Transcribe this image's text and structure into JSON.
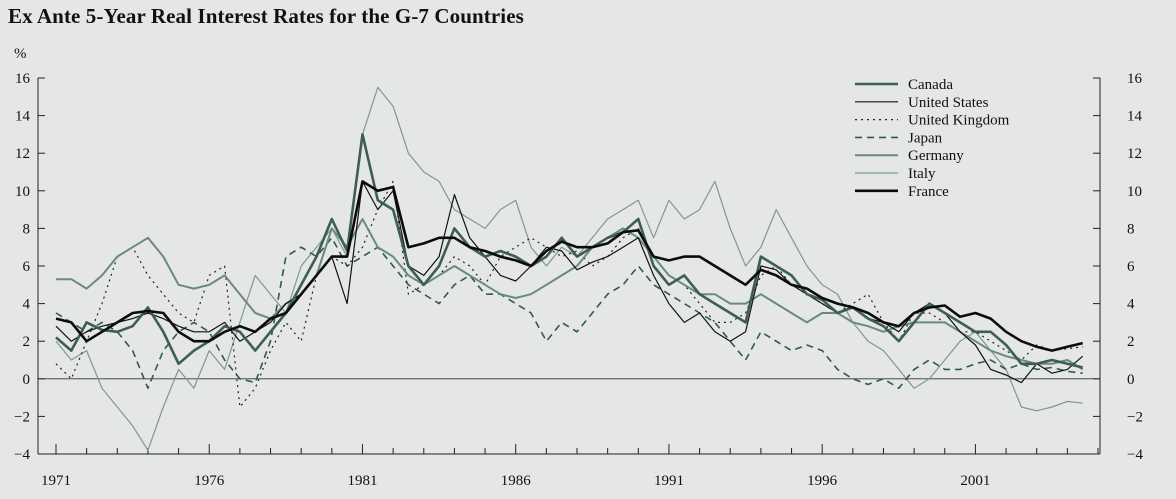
{
  "chart_data": {
    "type": "line",
    "title": "Ex Ante 5-Year Real Interest Rates for the G-7 Countries",
    "ylabel": "%",
    "xlabel": "",
    "ylim": [
      -4,
      16
    ],
    "xlim": [
      1971,
      2005
    ],
    "y_ticks": [
      -4,
      -2,
      0,
      2,
      4,
      6,
      8,
      10,
      12,
      14,
      16
    ],
    "y_tick_labels": [
      "−4",
      "−2",
      "0",
      "2",
      "4",
      "6",
      "8",
      "10",
      "12",
      "14",
      "16"
    ],
    "x_ticks": [
      1971,
      1976,
      1981,
      1986,
      1991,
      1996,
      2001
    ],
    "x_tick_labels": [
      "1971",
      "1976",
      "1981",
      "1986",
      "1991",
      "1996",
      "2001"
    ],
    "legend_position": "top-right",
    "series": [
      {
        "name": "Canada",
        "color": "#3e5e54",
        "style": "thick",
        "x": [
          1971.0,
          1971.5,
          1972.0,
          1972.5,
          1973.0,
          1973.5,
          1974.0,
          1974.5,
          1975.0,
          1975.5,
          1976.0,
          1976.5,
          1977.0,
          1977.5,
          1978.0,
          1978.5,
          1979.0,
          1979.5,
          1980.0,
          1980.5,
          1981.0,
          1981.5,
          1982.0,
          1982.5,
          1983.0,
          1983.5,
          1984.0,
          1984.5,
          1985.0,
          1985.5,
          1986.0,
          1986.5,
          1987.0,
          1987.5,
          1988.0,
          1988.5,
          1989.0,
          1989.5,
          1990.0,
          1990.5,
          1991.0,
          1991.5,
          1992.0,
          1992.5,
          1993.0,
          1993.5,
          1994.0,
          1994.5,
          1995.0,
          1995.5,
          1996.0,
          1996.5,
          1997.0,
          1997.5,
          1998.0,
          1998.5,
          1999.0,
          1999.5,
          2000.0,
          2000.5,
          2001.0,
          2001.5,
          2002.0,
          2002.5,
          2003.0,
          2003.5,
          2004.0,
          2004.5
        ],
        "values": [
          2.2,
          1.5,
          3.0,
          2.6,
          2.5,
          2.8,
          3.8,
          2.5,
          0.8,
          1.5,
          2.0,
          2.8,
          2.5,
          1.5,
          2.5,
          3.5,
          5.0,
          6.5,
          8.5,
          6.8,
          13.0,
          9.5,
          9.0,
          6.0,
          5.0,
          6.0,
          8.0,
          7.0,
          6.5,
          6.8,
          6.5,
          6.0,
          6.5,
          7.5,
          6.5,
          7.0,
          7.5,
          7.8,
          8.5,
          6.0,
          5.0,
          5.5,
          4.5,
          4.0,
          3.5,
          3.0,
          6.5,
          6.0,
          5.5,
          4.5,
          4.2,
          3.5,
          3.8,
          3.2,
          2.8,
          2.0,
          3.0,
          4.0,
          3.5,
          3.0,
          2.5,
          2.5,
          1.8,
          0.8,
          0.8,
          1.0,
          0.8,
          0.6
        ]
      },
      {
        "name": "United States",
        "color": "#111111",
        "style": "thin",
        "x": [
          1971.0,
          1971.5,
          1972.0,
          1972.5,
          1973.0,
          1973.5,
          1974.0,
          1974.5,
          1975.0,
          1975.5,
          1976.0,
          1976.5,
          1977.0,
          1977.5,
          1978.0,
          1978.5,
          1979.0,
          1979.5,
          1980.0,
          1980.5,
          1981.0,
          1981.5,
          1982.0,
          1982.5,
          1983.0,
          1983.5,
          1984.0,
          1984.5,
          1985.0,
          1985.5,
          1986.0,
          1986.5,
          1987.0,
          1987.5,
          1988.0,
          1988.5,
          1989.0,
          1989.5,
          1990.0,
          1990.5,
          1991.0,
          1991.5,
          1992.0,
          1992.5,
          1993.0,
          1993.5,
          1994.0,
          1994.5,
          1995.0,
          1995.5,
          1996.0,
          1996.5,
          1997.0,
          1997.5,
          1998.0,
          1998.5,
          1999.0,
          1999.5,
          2000.0,
          2000.5,
          2001.0,
          2001.5,
          2002.0,
          2002.5,
          2003.0,
          2003.5,
          2004.0,
          2004.5
        ],
        "values": [
          2.8,
          2.0,
          2.5,
          2.8,
          3.0,
          3.2,
          3.5,
          3.2,
          2.8,
          2.5,
          2.5,
          3.0,
          2.0,
          2.5,
          3.0,
          4.0,
          4.5,
          5.5,
          6.5,
          4.0,
          10.5,
          9.0,
          10.0,
          6.0,
          5.5,
          6.5,
          9.8,
          7.5,
          6.5,
          5.5,
          5.2,
          6.0,
          7.0,
          6.8,
          5.8,
          6.2,
          6.5,
          7.0,
          7.5,
          5.5,
          4.0,
          3.0,
          3.5,
          2.5,
          2.0,
          2.5,
          6.0,
          5.8,
          5.0,
          4.5,
          4.0,
          3.5,
          3.8,
          3.2,
          3.0,
          2.5,
          3.5,
          4.0,
          3.5,
          2.5,
          1.8,
          0.5,
          0.2,
          -0.2,
          0.8,
          0.3,
          0.5,
          1.2
        ]
      },
      {
        "name": "United Kingdom",
        "color": "#222222",
        "style": "dotted",
        "x": [
          1971.0,
          1971.5,
          1972.0,
          1972.5,
          1973.0,
          1973.5,
          1974.0,
          1974.5,
          1975.0,
          1975.5,
          1976.0,
          1976.5,
          1977.0,
          1977.5,
          1978.0,
          1978.5,
          1979.0,
          1979.5,
          1980.0,
          1980.5,
          1981.0,
          1981.5,
          1982.0,
          1982.5,
          1983.0,
          1983.5,
          1984.0,
          1984.5,
          1985.0,
          1985.5,
          1986.0,
          1986.5,
          1987.0,
          1987.5,
          1988.0,
          1988.5,
          1989.0,
          1989.5,
          1990.0,
          1990.5,
          1991.0,
          1991.5,
          1992.0,
          1992.5,
          1993.0,
          1993.5,
          1994.0,
          1994.5,
          1995.0,
          1995.5,
          1996.0,
          1996.5,
          1997.0,
          1997.5,
          1998.0,
          1998.5,
          1999.0,
          1999.5,
          2000.0,
          2000.5,
          2001.0,
          2001.5,
          2002.0,
          2002.5,
          2003.0,
          2003.5,
          2004.0,
          2004.5
        ],
        "values": [
          0.8,
          0.0,
          2.0,
          4.0,
          6.5,
          7.0,
          5.5,
          4.5,
          3.5,
          3.0,
          5.5,
          6.0,
          -1.5,
          -0.5,
          1.5,
          3.0,
          2.0,
          5.5,
          6.5,
          6.0,
          7.0,
          9.0,
          10.5,
          4.5,
          5.0,
          5.5,
          6.5,
          6.0,
          5.0,
          6.5,
          7.0,
          7.5,
          7.0,
          6.5,
          6.8,
          6.0,
          6.5,
          7.5,
          8.0,
          6.5,
          5.5,
          5.0,
          4.0,
          3.0,
          3.0,
          3.5,
          5.5,
          6.0,
          5.0,
          4.5,
          4.0,
          3.5,
          4.0,
          4.5,
          3.0,
          2.0,
          3.5,
          3.5,
          3.0,
          2.5,
          2.5,
          2.0,
          1.5,
          1.0,
          1.8,
          1.5,
          1.6,
          1.7
        ]
      },
      {
        "name": "Japan",
        "color": "#2e5a52",
        "style": "dashed",
        "x": [
          1971.0,
          1971.5,
          1972.0,
          1972.5,
          1973.0,
          1973.5,
          1974.0,
          1974.5,
          1975.0,
          1975.5,
          1976.0,
          1976.5,
          1977.0,
          1977.5,
          1978.0,
          1978.5,
          1979.0,
          1979.5,
          1980.0,
          1980.5,
          1981.0,
          1981.5,
          1982.0,
          1982.5,
          1983.0,
          1983.5,
          1984.0,
          1984.5,
          1985.0,
          1985.5,
          1986.0,
          1986.5,
          1987.0,
          1987.5,
          1988.0,
          1988.5,
          1989.0,
          1989.5,
          1990.0,
          1990.5,
          1991.0,
          1991.5,
          1992.0,
          1992.5,
          1993.0,
          1993.5,
          1994.0,
          1994.5,
          1995.0,
          1995.5,
          1996.0,
          1996.5,
          1997.0,
          1997.5,
          1998.0,
          1998.5,
          1999.0,
          1999.5,
          2000.0,
          2000.5,
          2001.0,
          2001.5,
          2002.0,
          2002.5,
          2003.0,
          2003.5,
          2004.0,
          2004.5
        ],
        "values": [
          3.5,
          3.0,
          2.5,
          3.0,
          2.5,
          1.5,
          -0.5,
          1.5,
          2.5,
          3.0,
          2.5,
          1.0,
          0.0,
          -0.2,
          2.0,
          6.5,
          7.0,
          6.5,
          7.5,
          6.0,
          6.5,
          7.0,
          6.0,
          5.0,
          4.5,
          4.0,
          5.0,
          5.5,
          4.5,
          4.5,
          4.0,
          3.5,
          2.0,
          3.0,
          2.5,
          3.5,
          4.5,
          5.0,
          6.0,
          5.0,
          4.5,
          4.0,
          3.5,
          3.0,
          2.0,
          1.0,
          2.5,
          2.0,
          1.5,
          1.8,
          1.5,
          0.5,
          0.0,
          -0.3,
          0.0,
          -0.5,
          0.5,
          1.0,
          0.5,
          0.5,
          0.8,
          1.0,
          0.5,
          0.8,
          0.5,
          0.6,
          0.4,
          0.3
        ]
      },
      {
        "name": "Germany",
        "color": "#6a8a80",
        "style": "medium",
        "x": [
          1971.0,
          1971.5,
          1972.0,
          1972.5,
          1973.0,
          1973.5,
          1974.0,
          1974.5,
          1975.0,
          1975.5,
          1976.0,
          1976.5,
          1977.0,
          1977.5,
          1978.0,
          1978.5,
          1979.0,
          1979.5,
          1980.0,
          1980.5,
          1981.0,
          1981.5,
          1982.0,
          1982.5,
          1983.0,
          1983.5,
          1984.0,
          1984.5,
          1985.0,
          1985.5,
          1986.0,
          1986.5,
          1987.0,
          1987.5,
          1988.0,
          1988.5,
          1989.0,
          1989.5,
          1990.0,
          1990.5,
          1991.0,
          1991.5,
          1992.0,
          1992.5,
          1993.0,
          1993.5,
          1994.0,
          1994.5,
          1995.0,
          1995.5,
          1996.0,
          1996.5,
          1997.0,
          1997.5,
          1998.0,
          1998.5,
          1999.0,
          1999.5,
          2000.0,
          2000.5,
          2001.0,
          2001.5,
          2002.0,
          2002.5,
          2003.0,
          2003.5,
          2004.0,
          2004.5
        ],
        "values": [
          5.3,
          5.3,
          4.8,
          5.5,
          6.5,
          7.0,
          7.5,
          6.5,
          5.0,
          4.8,
          5.0,
          5.5,
          4.5,
          3.5,
          3.2,
          4.0,
          4.5,
          5.5,
          8.0,
          7.0,
          8.5,
          7.0,
          6.5,
          5.5,
          5.0,
          5.5,
          6.0,
          5.5,
          5.0,
          4.5,
          4.3,
          4.5,
          5.0,
          5.5,
          6.0,
          7.0,
          7.5,
          8.0,
          7.5,
          6.5,
          5.5,
          5.0,
          4.5,
          4.5,
          4.0,
          4.0,
          4.5,
          4.0,
          3.5,
          3.0,
          3.5,
          3.5,
          3.0,
          2.8,
          2.5,
          2.8,
          3.0,
          3.0,
          3.0,
          2.5,
          2.0,
          1.5,
          1.2,
          1.0,
          0.8,
          0.8,
          1.0,
          0.5
        ]
      },
      {
        "name": "Italy",
        "color": "#7e9890",
        "style": "thin",
        "x": [
          1971.0,
          1971.5,
          1972.0,
          1972.5,
          1973.0,
          1973.5,
          1974.0,
          1974.5,
          1975.0,
          1975.5,
          1976.0,
          1976.5,
          1977.0,
          1977.5,
          1978.0,
          1978.5,
          1979.0,
          1979.5,
          1980.0,
          1980.5,
          1981.0,
          1981.5,
          1982.0,
          1982.5,
          1983.0,
          1983.5,
          1984.0,
          1984.5,
          1985.0,
          1985.5,
          1986.0,
          1986.5,
          1987.0,
          1987.5,
          1988.0,
          1988.5,
          1989.0,
          1989.5,
          1990.0,
          1990.5,
          1991.0,
          1991.5,
          1992.0,
          1992.5,
          1993.0,
          1993.5,
          1994.0,
          1994.5,
          1995.0,
          1995.5,
          1996.0,
          1996.5,
          1997.0,
          1997.5,
          1998.0,
          1998.5,
          1999.0,
          1999.5,
          2000.0,
          2000.5,
          2001.0,
          2001.5,
          2002.0,
          2002.5,
          2003.0,
          2003.5,
          2004.0,
          2004.5
        ],
        "values": [
          2.0,
          1.0,
          1.5,
          -0.5,
          -1.5,
          -2.5,
          -3.8,
          -1.5,
          0.5,
          -0.5,
          1.5,
          0.5,
          3.0,
          5.5,
          4.5,
          3.5,
          6.0,
          7.0,
          8.0,
          6.5,
          13.0,
          15.5,
          14.5,
          12.0,
          11.0,
          10.5,
          9.0,
          8.5,
          8.0,
          9.0,
          9.5,
          7.0,
          6.0,
          7.0,
          6.5,
          7.5,
          8.5,
          9.0,
          9.5,
          7.5,
          9.5,
          8.5,
          9.0,
          10.5,
          8.0,
          6.0,
          7.0,
          9.0,
          7.5,
          6.0,
          5.0,
          4.5,
          3.0,
          2.0,
          1.5,
          0.5,
          -0.5,
          0.0,
          1.0,
          2.0,
          2.5,
          1.5,
          0.5,
          -1.5,
          -1.7,
          -1.5,
          -1.2,
          -1.3
        ]
      },
      {
        "name": "France",
        "color": "#0c0c0c",
        "style": "thick",
        "x": [
          1971.0,
          1971.5,
          1972.0,
          1972.5,
          1973.0,
          1973.5,
          1974.0,
          1974.5,
          1975.0,
          1975.5,
          1976.0,
          1976.5,
          1977.0,
          1977.5,
          1978.0,
          1978.5,
          1979.0,
          1979.5,
          1980.0,
          1980.5,
          1981.0,
          1981.5,
          1982.0,
          1982.5,
          1983.0,
          1983.5,
          1984.0,
          1984.5,
          1985.0,
          1985.5,
          1986.0,
          1986.5,
          1987.0,
          1987.5,
          1988.0,
          1988.5,
          1989.0,
          1989.5,
          1990.0,
          1990.5,
          1991.0,
          1991.5,
          1992.0,
          1992.5,
          1993.0,
          1993.5,
          1994.0,
          1994.5,
          1995.0,
          1995.5,
          1996.0,
          1996.5,
          1997.0,
          1997.5,
          1998.0,
          1998.5,
          1999.0,
          1999.5,
          2000.0,
          2000.5,
          2001.0,
          2001.5,
          2002.0,
          2002.5,
          2003.0,
          2003.5,
          2004.0,
          2004.5
        ],
        "values": [
          3.2,
          3.0,
          2.0,
          2.5,
          3.0,
          3.5,
          3.6,
          3.5,
          2.5,
          2.0,
          2.0,
          2.5,
          2.8,
          2.5,
          3.2,
          3.5,
          4.5,
          5.5,
          6.5,
          6.5,
          10.5,
          10.0,
          10.2,
          7.0,
          7.2,
          7.5,
          7.5,
          7.0,
          6.8,
          6.5,
          6.3,
          6.0,
          6.8,
          7.3,
          7.0,
          7.0,
          7.2,
          7.8,
          7.9,
          6.5,
          6.3,
          6.5,
          6.5,
          6.0,
          5.5,
          5.0,
          5.8,
          5.5,
          5.0,
          4.8,
          4.3,
          4.0,
          3.8,
          3.5,
          3.0,
          2.8,
          3.5,
          3.8,
          3.9,
          3.3,
          3.5,
          3.2,
          2.5,
          2.0,
          1.7,
          1.5,
          1.7,
          1.9
        ]
      }
    ]
  }
}
